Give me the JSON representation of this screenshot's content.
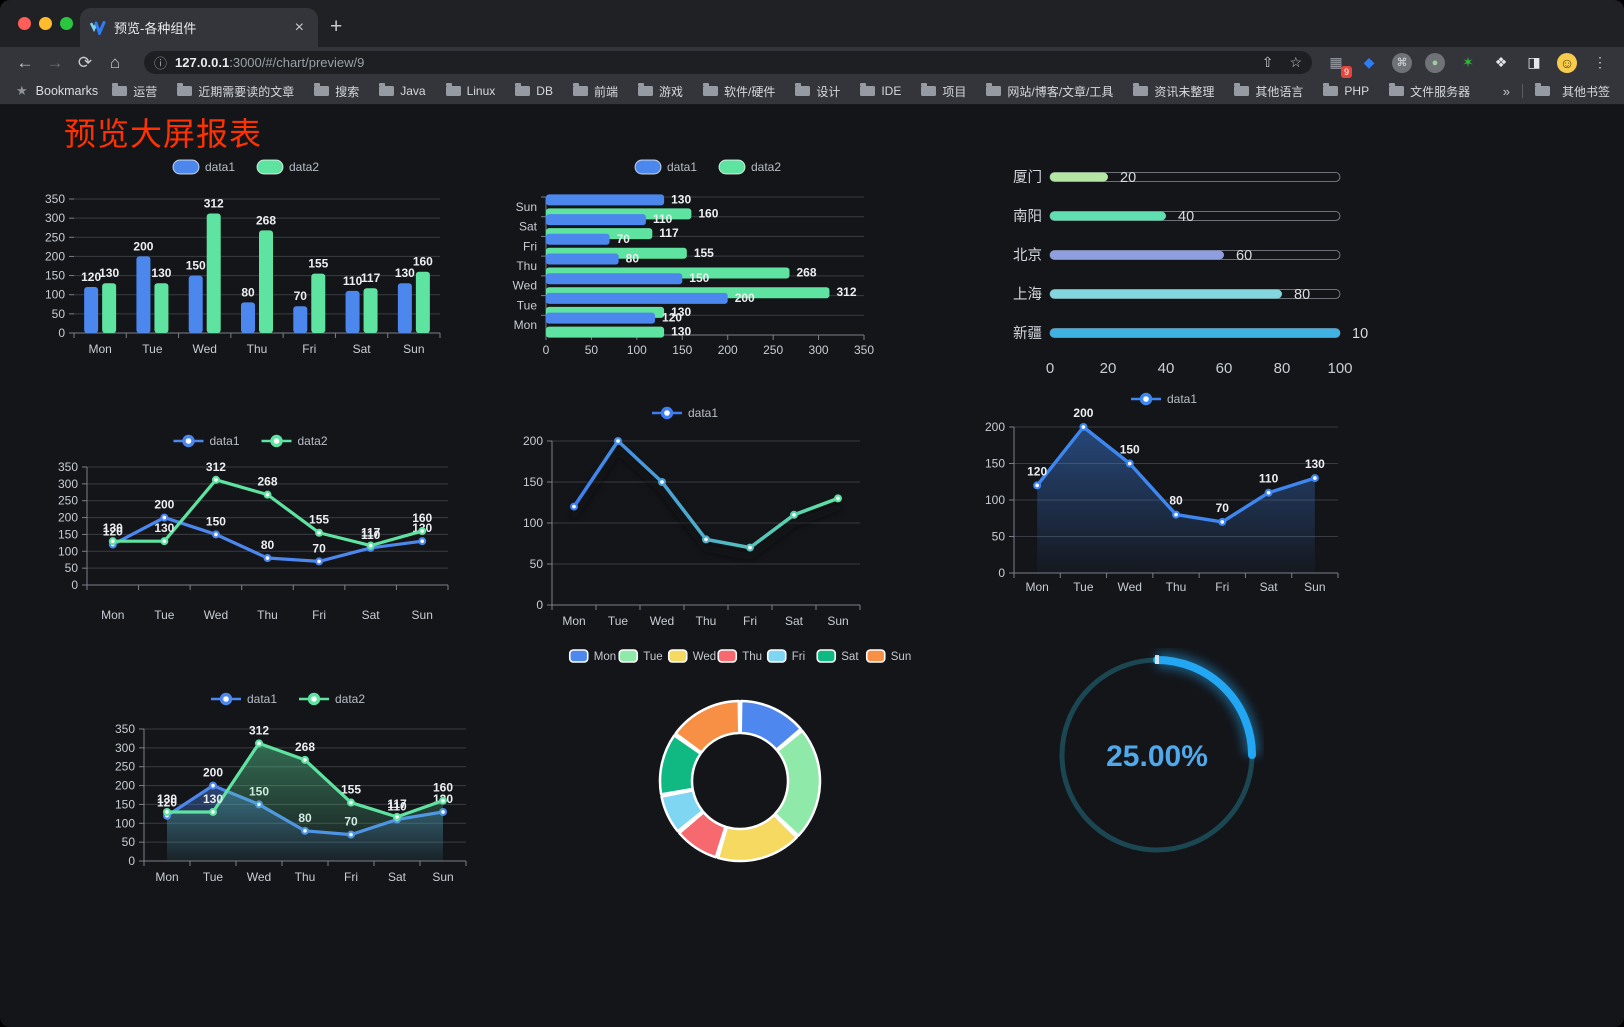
{
  "browser": {
    "tab_title": "预览-各种组件",
    "tab_close": "×",
    "new_tab_plus": "+",
    "url_host": "127.0.0.1",
    "url_rest": ":3000/#/chart/preview/9",
    "info_glyph": "ⓘ",
    "share_glyph": "⇧",
    "star_glyph": "☆",
    "nav_icons": [
      {
        "name": "back-icon",
        "glyph": "←",
        "dim": false
      },
      {
        "name": "forward-icon",
        "glyph": "→",
        "dim": true
      },
      {
        "name": "reload-icon",
        "glyph": "⟳",
        "dim": false
      },
      {
        "name": "home-icon",
        "glyph": "⌂",
        "dim": false
      }
    ],
    "extension_icons": [
      {
        "name": "grid-extension-icon",
        "glyph": "▦",
        "badge": "9",
        "color": "#9AA0A6"
      },
      {
        "name": "gem-extension-icon",
        "glyph": "◆",
        "color": "#2D7DF6"
      },
      {
        "name": "command-extension-icon",
        "glyph": "⌘",
        "circled": true
      },
      {
        "name": "record-extension-icon",
        "glyph": "●",
        "circled": true,
        "color": "#9CCF9C"
      },
      {
        "name": "star-extension-icon",
        "glyph": "✶",
        "color": "#2FBF3A"
      },
      {
        "name": "puzzle-extension-icon",
        "glyph": "❖",
        "color": "#E4E6EA"
      },
      {
        "name": "sidebar-toggle-icon",
        "glyph": "◨",
        "color": "#E4E6EA"
      },
      {
        "name": "profile-avatar",
        "glyph": "☺",
        "avatar": true
      },
      {
        "name": "menu-dots-icon",
        "glyph": "⋮",
        "color": "#C7CACF"
      }
    ],
    "bookmarks_bar": {
      "star": "★",
      "label": "Bookmarks",
      "folders": [
        "运营",
        "近期需要读的文章",
        "搜索",
        "Java",
        "Linux",
        "DB",
        "前端",
        "游戏",
        "软件/硬件",
        "设计",
        "IDE",
        "项目",
        "网站/博客/文章/工具",
        "资讯未整理",
        "其他语言",
        "PHP",
        "文件服务器"
      ],
      "overflow": "»",
      "other_bookmarks": "其他书签"
    }
  },
  "page": {
    "title": "预览大屏报表",
    "title_color": "#FF3101",
    "background": "#141519"
  },
  "chart_data": [
    {
      "id": "grouped-bar",
      "type": "bar",
      "categories": [
        "Mon",
        "Tue",
        "Wed",
        "Thu",
        "Fri",
        "Sat",
        "Sun"
      ],
      "series": [
        {
          "name": "data1",
          "color": "#4C87EE",
          "values": [
            120,
            200,
            150,
            80,
            70,
            110,
            130
          ]
        },
        {
          "name": "data2",
          "color": "#5FE3A1",
          "values": [
            130,
            130,
            312,
            268,
            155,
            117,
            160
          ]
        }
      ],
      "ylim": [
        0,
        350
      ],
      "ytick": 50,
      "legend_position": "top",
      "grid": true
    },
    {
      "id": "horizontal-bar",
      "type": "hbar",
      "categories": [
        "Mon",
        "Tue",
        "Wed",
        "Thu",
        "Fri",
        "Sat",
        "Sun"
      ],
      "display_order_top_to_bottom": [
        "Sun",
        "Sat",
        "Fri",
        "Thu",
        "Wed",
        "Tue",
        "Mon"
      ],
      "series": [
        {
          "name": "data1",
          "color": "#4C87EE",
          "values": [
            120,
            200,
            150,
            80,
            70,
            110,
            130
          ]
        },
        {
          "name": "data2",
          "color": "#5FE3A1",
          "values": [
            130,
            130,
            312,
            268,
            155,
            117,
            160
          ]
        }
      ],
      "xlim": [
        0,
        350
      ],
      "xtick": 50,
      "legend_position": "top",
      "grid": true
    },
    {
      "id": "city-progress",
      "type": "progress",
      "max": 100,
      "xticks": [
        0,
        20,
        40,
        60,
        80,
        100
      ],
      "items": [
        {
          "label": "厦门",
          "value": 20,
          "color": "#B5E6A3"
        },
        {
          "label": "南阳",
          "value": 40,
          "color": "#60DFB3"
        },
        {
          "label": "北京",
          "value": 60,
          "color": "#8E9EDE"
        },
        {
          "label": "上海",
          "value": 80,
          "color": "#82D6DE"
        },
        {
          "label": "新疆",
          "value": 100,
          "color": "#3FB1E3"
        }
      ]
    },
    {
      "id": "line-two-series",
      "type": "line",
      "categories": [
        "Mon",
        "Tue",
        "Wed",
        "Thu",
        "Fri",
        "Sat",
        "Sun"
      ],
      "series": [
        {
          "name": "data1",
          "color": "#4C87EE",
          "values": [
            120,
            200,
            150,
            80,
            70,
            110,
            130
          ]
        },
        {
          "name": "data2",
          "color": "#5FE3A1",
          "values": [
            130,
            130,
            312,
            268,
            155,
            117,
            160
          ]
        }
      ],
      "ylim": [
        0,
        350
      ],
      "ytick": 50,
      "show_labels": true,
      "legend_position": "top",
      "grid": true
    },
    {
      "id": "gradient-line",
      "type": "gline",
      "categories": [
        "Mon",
        "Tue",
        "Wed",
        "Thu",
        "Fri",
        "Sat",
        "Sun"
      ],
      "series": [
        {
          "name": "data1",
          "colors": [
            "#3E7EF0",
            "#5FE3A1"
          ],
          "values": [
            120,
            200,
            150,
            80,
            70,
            110,
            130
          ]
        }
      ],
      "ylim": [
        0,
        200
      ],
      "ytick": 50,
      "show_labels": false,
      "legend_position": "top",
      "grid": true
    },
    {
      "id": "area-single",
      "type": "area1",
      "categories": [
        "Mon",
        "Tue",
        "Wed",
        "Thu",
        "Fri",
        "Sat",
        "Sun"
      ],
      "series": [
        {
          "name": "data1",
          "color": "#3E86F0",
          "values": [
            120,
            200,
            150,
            80,
            70,
            110,
            130
          ]
        }
      ],
      "ylim": [
        0,
        200
      ],
      "ytick": 50,
      "show_labels": true,
      "legend_position": "top",
      "grid": true
    },
    {
      "id": "area-two-series",
      "type": "area2",
      "categories": [
        "Mon",
        "Tue",
        "Wed",
        "Thu",
        "Fri",
        "Sat",
        "Sun"
      ],
      "series": [
        {
          "name": "data1",
          "color": "#4C87EE",
          "values": [
            120,
            200,
            150,
            80,
            70,
            110,
            130
          ]
        },
        {
          "name": "data2",
          "color": "#5FE3A1",
          "values": [
            130,
            130,
            312,
            268,
            155,
            117,
            160
          ]
        }
      ],
      "ylim": [
        0,
        350
      ],
      "ytick": 50,
      "show_labels": true,
      "legend_position": "top",
      "grid": true
    },
    {
      "id": "donut-week",
      "type": "donut",
      "categories": [
        "Mon",
        "Tue",
        "Wed",
        "Thu",
        "Fri",
        "Sat",
        "Sun"
      ],
      "values": [
        120,
        200,
        150,
        80,
        70,
        110,
        130
      ],
      "colors": [
        "#4E87EE",
        "#8FE9A8",
        "#F6D960",
        "#F5696F",
        "#7ED6F2",
        "#10B981",
        "#F78F45"
      ],
      "legend_position": "top"
    },
    {
      "id": "gauge-percent",
      "type": "gauge",
      "value": 25,
      "label": "25.00%",
      "color": "#23A7F2",
      "track_color": "#1B4752",
      "text_color": "#4FA9EA"
    }
  ]
}
